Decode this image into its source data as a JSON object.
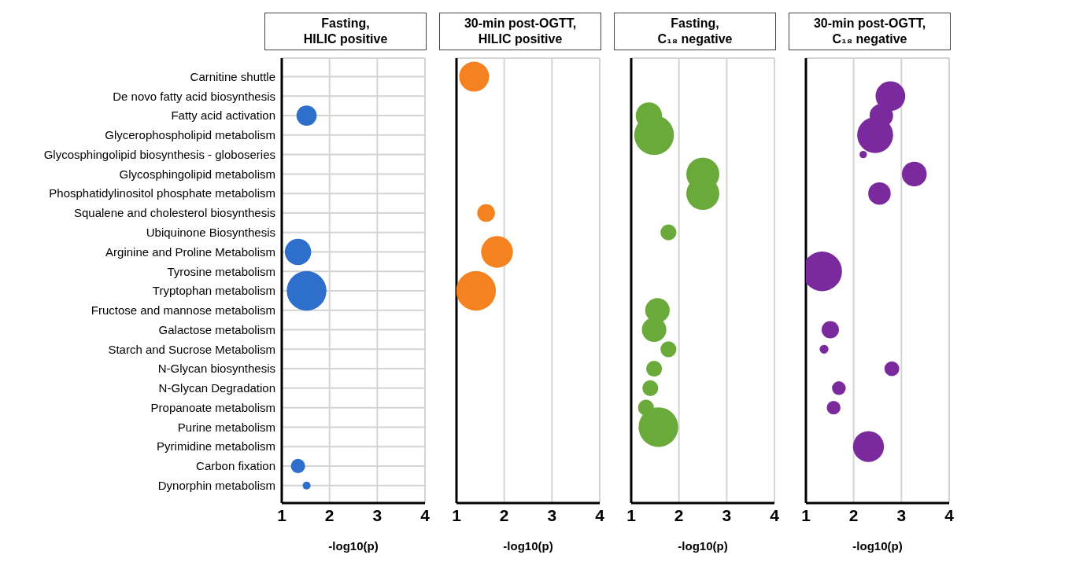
{
  "chart_data": [
    {
      "type": "bubble",
      "title": "Fasting,\nHILIC positive",
      "orientation": "horizontal",
      "categories": [
        "Carnitine shuttle",
        "De novo fatty acid biosynthesis",
        "Fatty acid activation",
        "Glycerophospholipid metabolism",
        "Glycosphingolipid biosynthesis - globoseries",
        "Glycosphingolipid metabolism",
        "Phosphatidylinositol phosphate metabolism",
        "Squalene and cholesterol biosynthesis",
        "Ubiquinone Biosynthesis",
        "Arginine and Proline Metabolism",
        "Tyrosine metabolism",
        "Tryptophan metabolism",
        "Fructose and mannose metabolism",
        "Galactose metabolism",
        "Starch and Sucrose Metabolism",
        "N-Glycan biosynthesis",
        "N-Glycan Degradation",
        "Propanoate metabolism",
        "Purine metabolism",
        "Pyrimidine metabolism",
        "Carbon fixation",
        "Dynorphin metabolism"
      ],
      "xlabel": "-log10(p)",
      "xlim": [
        1,
        4
      ],
      "xticks": [
        1,
        2,
        3,
        4
      ],
      "grid": true,
      "marker": "circle",
      "series": [
        {
          "color": "#2e6fcc",
          "values": [
            null,
            null,
            1.52,
            null,
            null,
            null,
            null,
            null,
            null,
            1.34,
            null,
            1.52,
            null,
            null,
            null,
            null,
            null,
            null,
            null,
            null,
            1.34,
            1.52
          ],
          "sizes": [
            null,
            null,
            0.26,
            null,
            null,
            null,
            null,
            null,
            null,
            0.44,
            null,
            1,
            null,
            null,
            null,
            null,
            null,
            null,
            null,
            null,
            0.13,
            0.04
          ]
        }
      ]
    },
    {
      "type": "bubble",
      "title": "30-min post-OGTT,\nHILIC positive",
      "orientation": "horizontal",
      "tick_labels": "x",
      "categories": [
        null,
        null,
        null,
        null,
        null,
        null,
        null,
        null,
        null,
        null,
        null,
        null,
        null,
        null,
        null,
        null,
        null,
        null,
        null,
        null,
        null,
        null
      ],
      "xlabel": "-log10(p)",
      "xlim": [
        1,
        4
      ],
      "xticks": [
        1,
        2,
        3,
        4
      ],
      "grid": true,
      "marker": "circle",
      "series": [
        {
          "color": "#f58220",
          "values": [
            1.37,
            null,
            null,
            null,
            null,
            null,
            null,
            1.62,
            null,
            1.85,
            null,
            1.41,
            null,
            null,
            null,
            null,
            null,
            null,
            null,
            null,
            null,
            null
          ],
          "sizes": [
            0.57,
            null,
            null,
            null,
            null,
            null,
            null,
            0.2,
            null,
            0.64,
            null,
            1,
            null,
            null,
            null,
            null,
            null,
            null,
            null,
            null,
            null,
            null
          ]
        }
      ]
    },
    {
      "type": "bubble",
      "title": "Fasting,\nC₁₈ negative",
      "orientation": "horizontal",
      "tick_labels": "x",
      "categories": [
        null,
        null,
        null,
        null,
        null,
        null,
        null,
        null,
        null,
        null,
        null,
        null,
        null,
        null,
        null,
        null,
        null,
        null,
        null,
        null,
        null,
        null
      ],
      "xlabel": "-log10(p)",
      "xlim": [
        1,
        4
      ],
      "xticks": [
        1,
        2,
        3,
        4
      ],
      "grid": true,
      "marker": "circle",
      "series": [
        {
          "color": "#6aaa3a",
          "values": [
            null,
            null,
            1.37,
            1.48,
            null,
            2.5,
            2.5,
            null,
            1.78,
            null,
            null,
            null,
            1.55,
            1.48,
            1.78,
            1.48,
            1.4,
            1.31,
            1.57,
            null,
            null,
            null
          ],
          "sizes": [
            null,
            null,
            0.44,
            1,
            null,
            0.69,
            0.69,
            null,
            0.16,
            null,
            null,
            null,
            0.38,
            0.38,
            0.16,
            0.16,
            0.16,
            0.16,
            1,
            null,
            null,
            null
          ]
        }
      ]
    },
    {
      "type": "bubble",
      "title": "30-min post-OGTT,\nC₁₈ negative",
      "orientation": "horizontal",
      "tick_labels": "x",
      "categories": [
        null,
        null,
        null,
        null,
        null,
        null,
        null,
        null,
        null,
        null,
        null,
        null,
        null,
        null,
        null,
        null,
        null,
        null,
        null,
        null,
        null,
        null
      ],
      "xlabel": "-log10(p)",
      "xlim": [
        1,
        4
      ],
      "xticks": [
        1,
        2,
        3,
        4
      ],
      "grid": true,
      "marker": "circle",
      "series": [
        {
          "color": "#7b2a9e",
          "values": [
            null,
            2.77,
            2.58,
            2.45,
            2.2,
            3.27,
            2.54,
            null,
            null,
            null,
            1.34,
            null,
            null,
            1.51,
            1.38,
            2.8,
            1.69,
            1.58,
            null,
            2.31,
            null,
            null
          ],
          "sizes": [
            null,
            0.56,
            0.35,
            0.82,
            0.035,
            0.39,
            0.32,
            null,
            null,
            null,
            1,
            null,
            null,
            0.19,
            0.05,
            0.14,
            0.12,
            0.12,
            null,
            0.61,
            null,
            null
          ]
        }
      ]
    }
  ]
}
